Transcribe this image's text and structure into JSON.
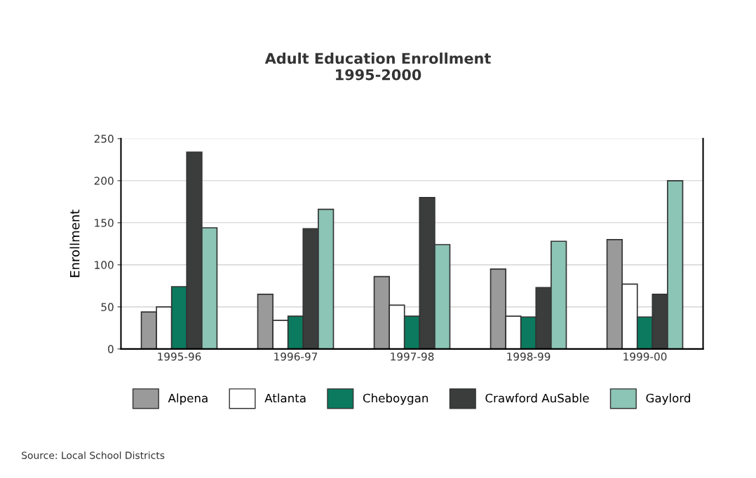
{
  "chart_data": {
    "type": "bar",
    "title": "Adult Education Enrollment\n1995-2000",
    "ylabel": "Enrollment",
    "categories": [
      "1995-96",
      "1996-97",
      "1997-98",
      "1998-99",
      "1999-00"
    ],
    "series": [
      {
        "name": "Alpena",
        "color": "#9a9a9a",
        "values": [
          44,
          65,
          86,
          95,
          130
        ]
      },
      {
        "name": "Atlanta",
        "color": "#ffffff",
        "values": [
          50,
          34,
          52,
          39,
          77
        ]
      },
      {
        "name": "Cheboygan",
        "color": "#0b7a5f",
        "values": [
          74,
          39,
          39,
          38,
          38
        ]
      },
      {
        "name": "Crawford AuSable",
        "color": "#3a3d3c",
        "values": [
          234,
          143,
          180,
          73,
          65
        ]
      },
      {
        "name": "Gaylord",
        "color": "#8cc4b5",
        "values": [
          144,
          166,
          124,
          128,
          200
        ]
      }
    ],
    "ylim": [
      0,
      250
    ],
    "yticks": [
      0,
      50,
      100,
      150,
      200,
      250
    ],
    "grid": "y",
    "legend": "bottom",
    "annotations": [
      "Source: Local School Districts"
    ]
  }
}
